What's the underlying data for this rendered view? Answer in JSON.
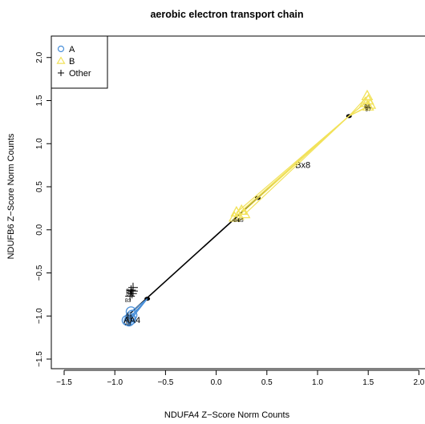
{
  "chart_data": {
    "type": "scatter",
    "title": "aerobic electron transport chain",
    "xlabel": "NDUFA4 Z−Score Norm Counts",
    "ylabel": "NDUFB6 Z−Score Norm Counts",
    "xlim": [
      -1.5,
      2.0
    ],
    "ylim": [
      -1.5,
      2.0
    ],
    "x_ticks": [
      "−1.5",
      "−1.0",
      "−0.5",
      "0.0",
      "0.5",
      "1.0",
      "1.5",
      "2.0"
    ],
    "y_ticks": [
      "−1.5",
      "−1.0",
      "−0.5",
      "0.0",
      "0.5",
      "1.0",
      "1.5",
      "2.0"
    ],
    "legend": {
      "position": "top-left",
      "entries": [
        {
          "label": "A",
          "symbol": "circle",
          "color": "#4a90d9"
        },
        {
          "label": "B",
          "symbol": "triangle",
          "color": "#f2e25a"
        },
        {
          "label": "Other",
          "symbol": "plus",
          "color": "#000000"
        }
      ]
    },
    "regression_line": {
      "x": [
        -0.85,
        0.85
      ],
      "y": [
        -0.97,
        0.84
      ],
      "label": "Bx8",
      "label_at": [
        0.78,
        0.72
      ]
    },
    "trajectory_points": [
      {
        "x": -0.68,
        "y": -0.8
      },
      {
        "x": 0.41,
        "y": 0.37
      },
      {
        "x": 1.31,
        "y": 1.32
      }
    ],
    "series": [
      {
        "name": "A",
        "symbol": "circle",
        "color": "#4a90d9",
        "points": [
          {
            "x": -0.84,
            "y": -0.95
          },
          {
            "x": -0.83,
            "y": -0.99
          },
          {
            "x": -0.85,
            "y": -1.02
          },
          {
            "x": -0.86,
            "y": -1.06
          },
          {
            "x": -0.84,
            "y": -1.04
          },
          {
            "x": -0.88,
            "y": -1.05
          }
        ],
        "centroid": {
          "x": -0.68,
          "y": -0.8
        }
      },
      {
        "name": "B",
        "symbol": "triangle",
        "color": "#f2e25a",
        "points": [
          {
            "x": 1.49,
            "y": 1.55
          },
          {
            "x": 1.5,
            "y": 1.5
          },
          {
            "x": 1.47,
            "y": 1.47
          },
          {
            "x": 1.52,
            "y": 1.45
          },
          {
            "x": 1.5,
            "y": 1.43
          },
          {
            "x": 0.2,
            "y": 0.2
          },
          {
            "x": 0.25,
            "y": 0.22
          },
          {
            "x": 0.22,
            "y": 0.16
          },
          {
            "x": 0.28,
            "y": 0.18
          },
          {
            "x": 0.18,
            "y": 0.14
          }
        ],
        "centroid": {
          "x": 1.31,
          "y": 1.32
        }
      },
      {
        "name": "Other",
        "symbol": "plus",
        "color": "#000000",
        "points": [
          {
            "x": -0.82,
            "y": -0.67
          },
          {
            "x": -0.84,
            "y": -0.7
          },
          {
            "x": -0.83,
            "y": -0.74
          },
          {
            "x": -0.85,
            "y": -0.77
          },
          {
            "x": -0.82,
            "y": -0.71
          }
        ]
      }
    ],
    "point_labels": [
      {
        "text": "AA4",
        "x": -0.83,
        "y": -1.08,
        "size": "medium"
      },
      {
        "text": "A1",
        "x": -0.86,
        "y": -1.0,
        "size": "small"
      },
      {
        "text": "A2",
        "x": -0.86,
        "y": -1.03,
        "size": "small"
      },
      {
        "text": "A3",
        "x": -0.86,
        "y": -1.06,
        "size": "small"
      },
      {
        "text": "A5",
        "x": -0.87,
        "y": -1.11,
        "size": "small"
      },
      {
        "text": "B1",
        "x": -0.86,
        "y": -0.73,
        "size": "small"
      },
      {
        "text": "B2",
        "x": -0.86,
        "y": -0.76,
        "size": "small"
      },
      {
        "text": "B3",
        "x": -0.87,
        "y": -0.84,
        "size": "small"
      },
      {
        "text": "B4",
        "x": 0.2,
        "y": 0.09,
        "size": "small"
      },
      {
        "text": "B5",
        "x": 0.24,
        "y": 0.09,
        "size": "small"
      },
      {
        "text": "B6",
        "x": 1.49,
        "y": 1.41,
        "size": "small"
      },
      {
        "text": "B7",
        "x": 1.5,
        "y": 1.38,
        "size": "small"
      }
    ]
  }
}
